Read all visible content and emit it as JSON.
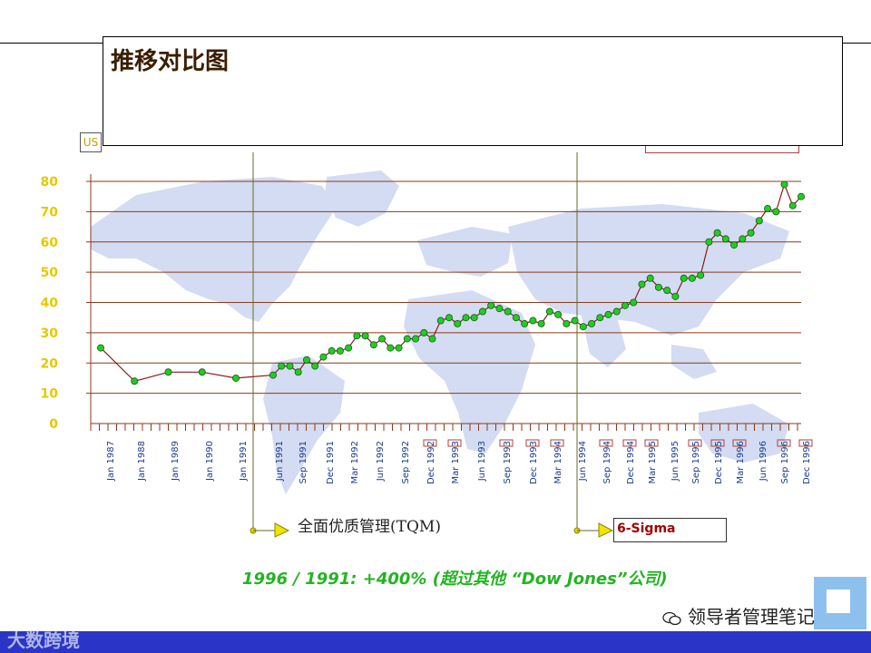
{
  "page": {
    "title": "推移对比图",
    "currency_label": "US",
    "tqm_label": "全面优质管理(TQM)",
    "sigma_label": "6-Sigma",
    "caption": "1996 / 1991: +400% (超过其他 “Dow Jones”公司)",
    "watermark_left": "大数跨境",
    "watermark_right": "领导者管理笔记"
  },
  "colors": {
    "title": "#3a1e00",
    "grid": "#8b3a1a",
    "series_line": "#8b1a1a",
    "marker_fill": "#22cc22",
    "y_tick": "#e6c800",
    "x_tick": "#1a3a8c",
    "caption": "#22b422",
    "bottom_bar": "#2a35c8"
  },
  "chart_data": {
    "type": "line",
    "title": "",
    "xlabel": "",
    "ylabel": "",
    "ylim": [
      0,
      80
    ],
    "yticks": [
      0,
      10,
      20,
      30,
      40,
      50,
      60,
      70,
      80
    ],
    "grid": true,
    "x_tick_labels": [
      "Jan 1987",
      "Jan 1988",
      "Jan 1989",
      "Jan 1990",
      "Jan 1991",
      "Jun 1991",
      "Sep 1991",
      "Dec 1991",
      "Mar 1992",
      "Jun 1992",
      "Sep 1992",
      "Dec 1992",
      "Mar 1993",
      "Jun 1993",
      "Sep 1993",
      "Dec 1993",
      "Mar 1994",
      "Jun 1994",
      "Sep 1994",
      "Dec 1994",
      "Mar 1995",
      "Jun 1995",
      "Sep 1995",
      "Dec 1995",
      "Mar 1996",
      "Jun 1996",
      "Sep 1996",
      "Dec 1996"
    ],
    "annotations": [
      {
        "label": "全面优质管理(TQM)",
        "at": "Jan 1991"
      },
      {
        "label": "6-Sigma",
        "at": "Jun 1994"
      }
    ],
    "series": [
      {
        "values": [
          25,
          14,
          17,
          17,
          15,
          16,
          19,
          19,
          17,
          21,
          19,
          22,
          24,
          24,
          25,
          29,
          29,
          26,
          28,
          25,
          25,
          28,
          28,
          30,
          28,
          34,
          35,
          33,
          35,
          35,
          37,
          39,
          38,
          37,
          35,
          33,
          34,
          33,
          37,
          36,
          33,
          34,
          32,
          33,
          35,
          36,
          37,
          39,
          40,
          46,
          48,
          45,
          44,
          42,
          48,
          48,
          49,
          60,
          63,
          61,
          59,
          61,
          63,
          67,
          71,
          70,
          79,
          72,
          75
        ]
      }
    ]
  }
}
